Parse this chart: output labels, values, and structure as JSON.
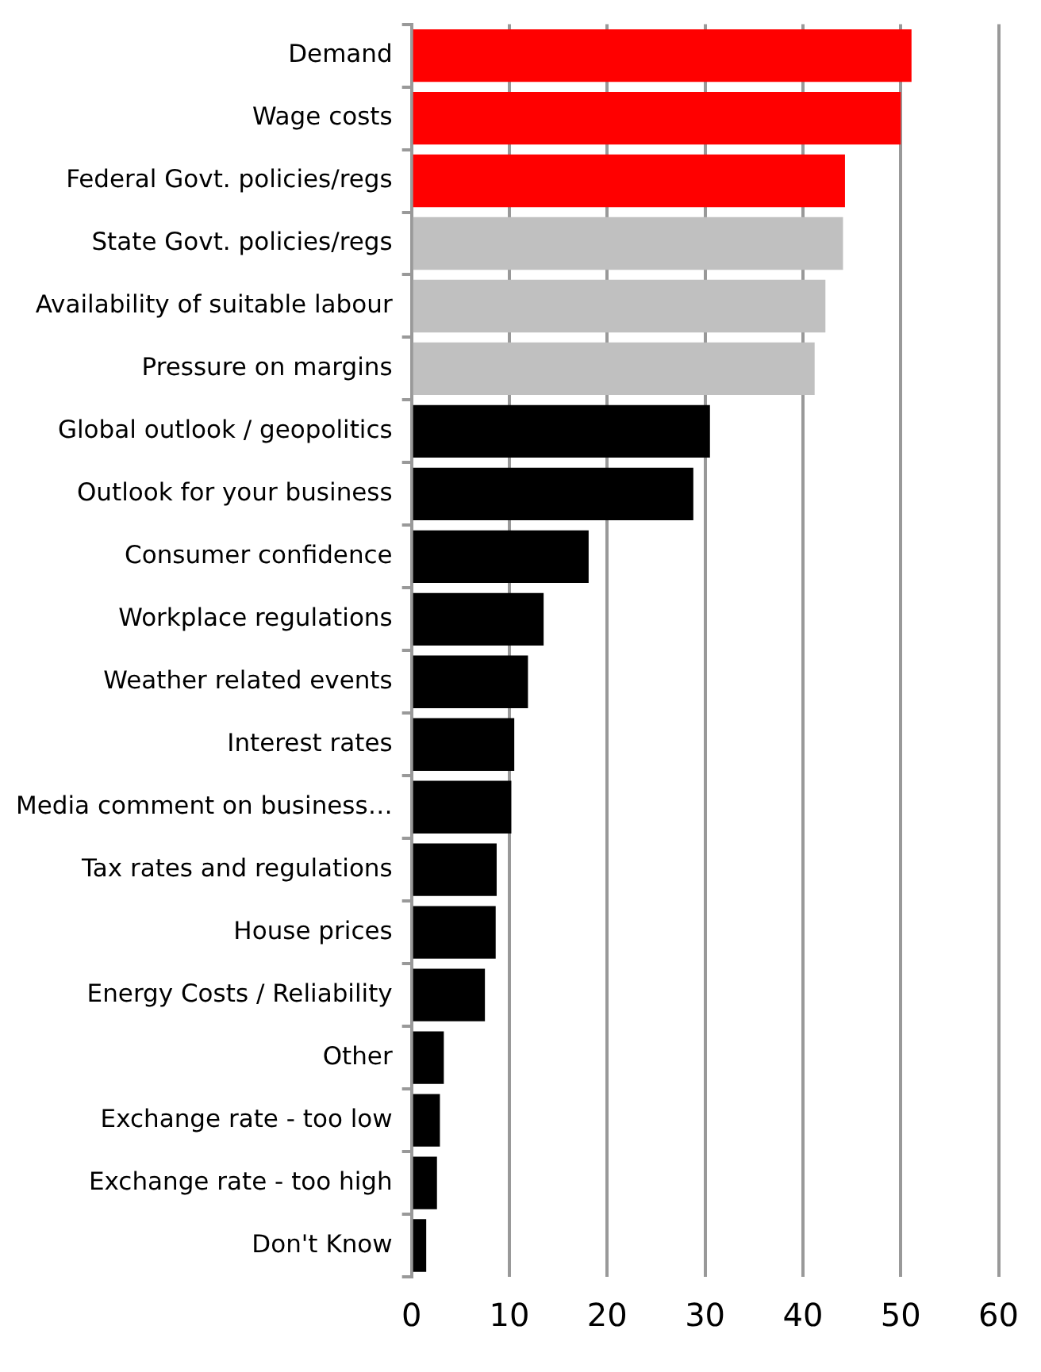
{
  "chart_data": {
    "type": "bar",
    "orientation": "horizontal",
    "categories": [
      "Demand",
      "Wage costs",
      "Federal Govt. policies/regs",
      "State Govt. policies/regs",
      "Availability of suitable labour",
      "Pressure on margins",
      "Global outlook / geopolitics",
      "Outlook for your business",
      "Consumer confidence",
      "Workplace regulations",
      "Weather related events",
      "Interest rates",
      "Media comment on business…",
      "Tax rates and regulations",
      "House prices",
      "Energy Costs / Reliability",
      "Other",
      "Exchange rate - too low",
      "Exchange rate - too high",
      "Don't Know"
    ],
    "values": [
      51.1,
      50.0,
      44.3,
      44.1,
      42.3,
      41.2,
      30.5,
      28.8,
      18.1,
      13.5,
      11.9,
      10.5,
      10.2,
      8.7,
      8.6,
      7.5,
      3.3,
      2.9,
      2.6,
      1.5
    ],
    "colors": [
      "#ff0000",
      "#ff0000",
      "#ff0000",
      "#c0c0c0",
      "#c0c0c0",
      "#c0c0c0",
      "#000000",
      "#000000",
      "#000000",
      "#000000",
      "#000000",
      "#000000",
      "#000000",
      "#000000",
      "#000000",
      "#000000",
      "#000000",
      "#000000",
      "#000000",
      "#000000"
    ],
    "xlim": [
      0,
      60
    ],
    "xticks": [
      0,
      10,
      20,
      30,
      40,
      50,
      60
    ],
    "grid": "x",
    "legend": false
  }
}
